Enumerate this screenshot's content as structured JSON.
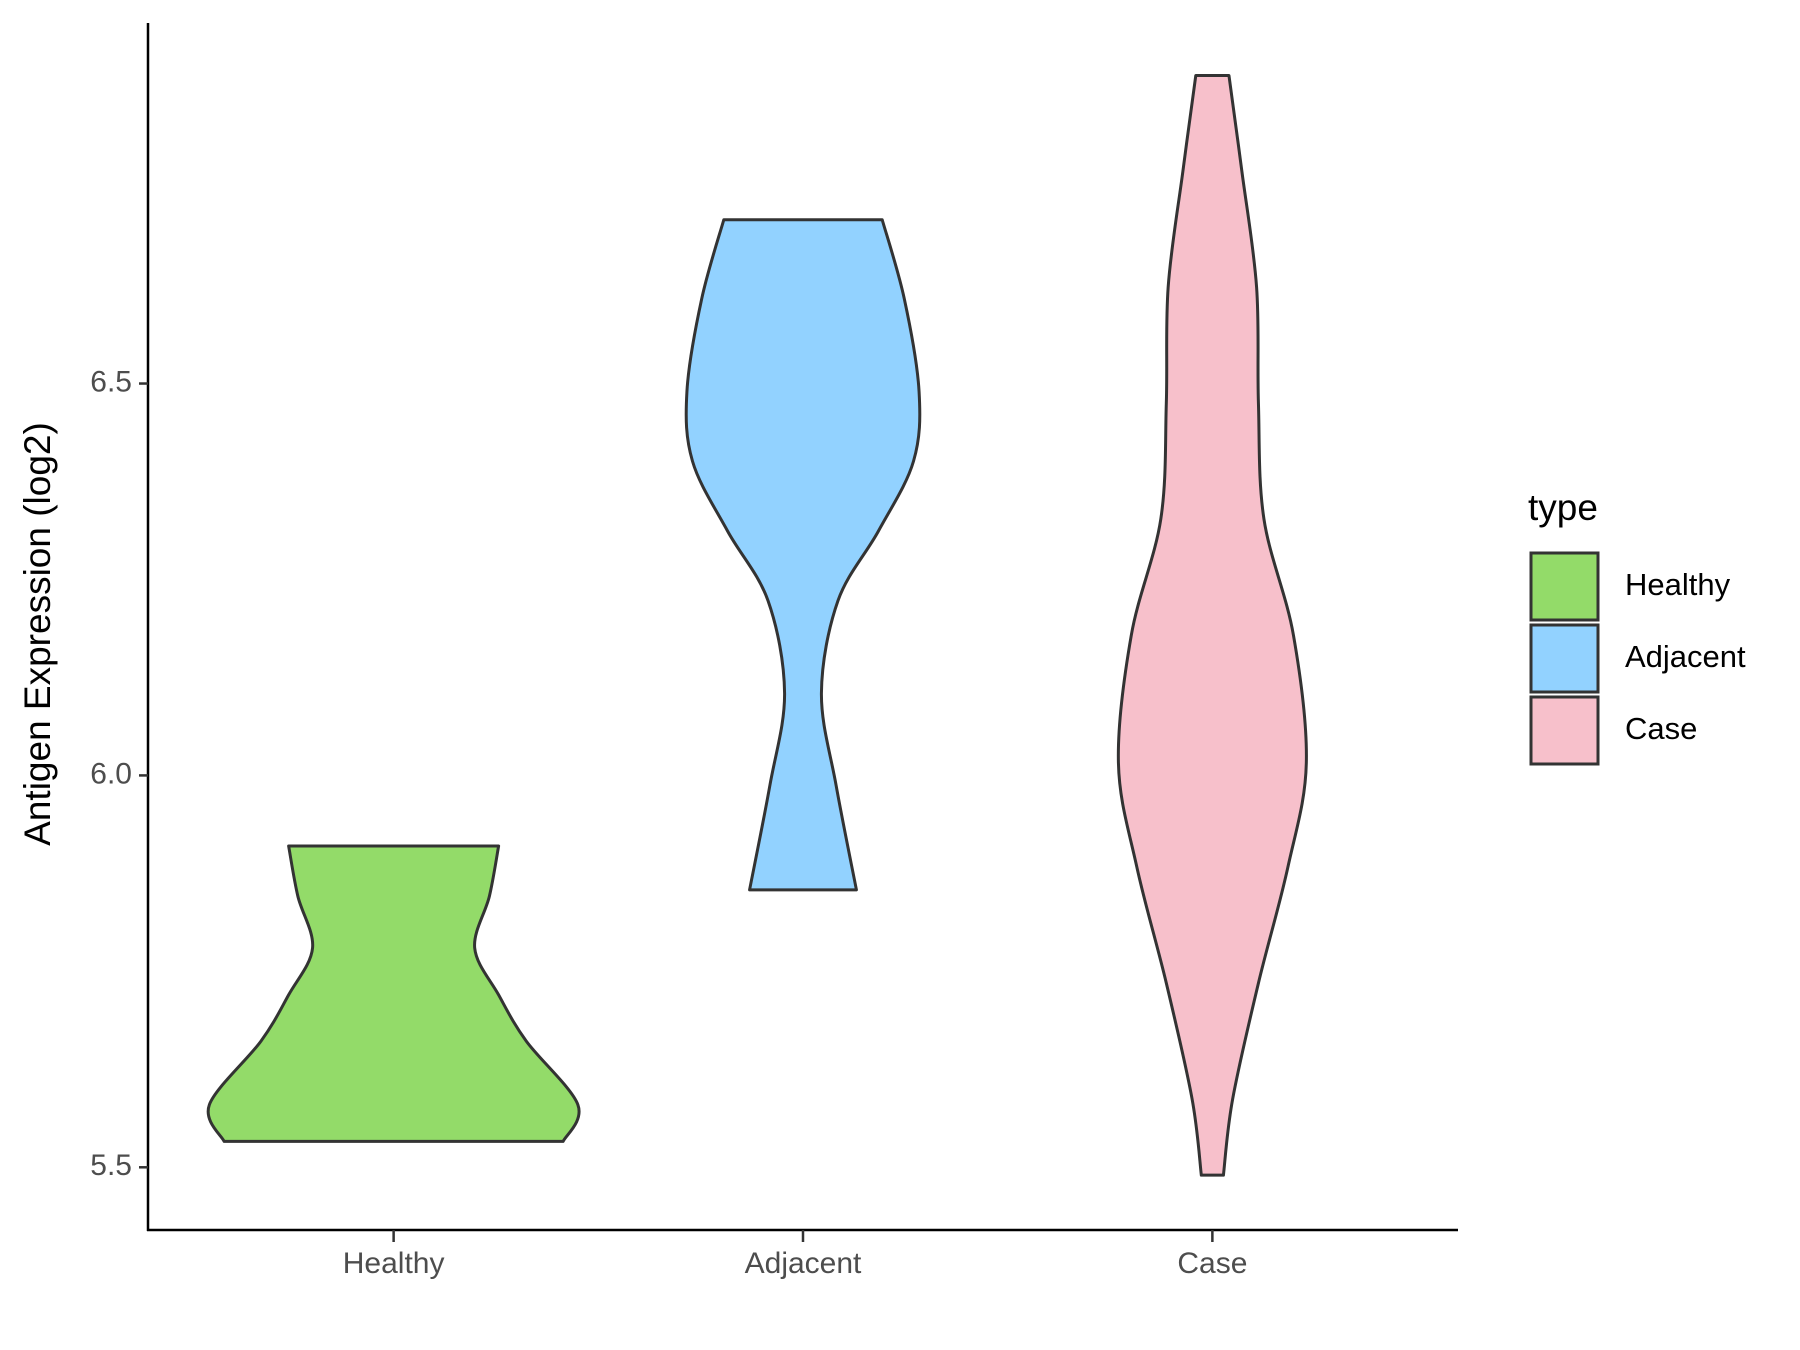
{
  "chart_data": {
    "type": "violin",
    "y_label": "Antigen Expression (log2)",
    "categories": [
      "Healthy",
      "Adjacent",
      "Case"
    ],
    "legend_title": "type",
    "series": [
      {
        "name": "Healthy",
        "color": "#93DB69",
        "values": [
          5.533,
          5.58,
          5.661,
          5.72,
          5.78,
          5.846,
          5.91
        ],
        "density": [
          0.92,
          1.0,
          0.72,
          0.57,
          0.44,
          0.52,
          0.57
        ]
      },
      {
        "name": "Adjacent",
        "color": "#92D2FF",
        "values": [
          6.709,
          6.608,
          6.49,
          6.401,
          6.312,
          6.223,
          6.105,
          5.987,
          5.854
        ],
        "density": [
          0.43,
          0.55,
          0.63,
          0.6,
          0.41,
          0.19,
          0.1,
          0.18,
          0.29
        ]
      },
      {
        "name": "Case",
        "color": "#F7C0CB",
        "values": [
          6.893,
          6.771,
          6.623,
          6.475,
          6.327,
          6.179,
          6.016,
          5.883,
          5.735,
          5.587,
          5.49
        ],
        "density": [
          0.09,
          0.16,
          0.24,
          0.25,
          0.28,
          0.44,
          0.51,
          0.41,
          0.25,
          0.11,
          0.06
        ]
      }
    ],
    "ylim": [
      5.42,
      6.96
    ],
    "yticks": [
      {
        "value": 5.5,
        "label": "5.5"
      },
      {
        "value": 6,
        "label": "6.0"
      },
      {
        "value": 6.5,
        "label": "6.5"
      }
    ]
  }
}
